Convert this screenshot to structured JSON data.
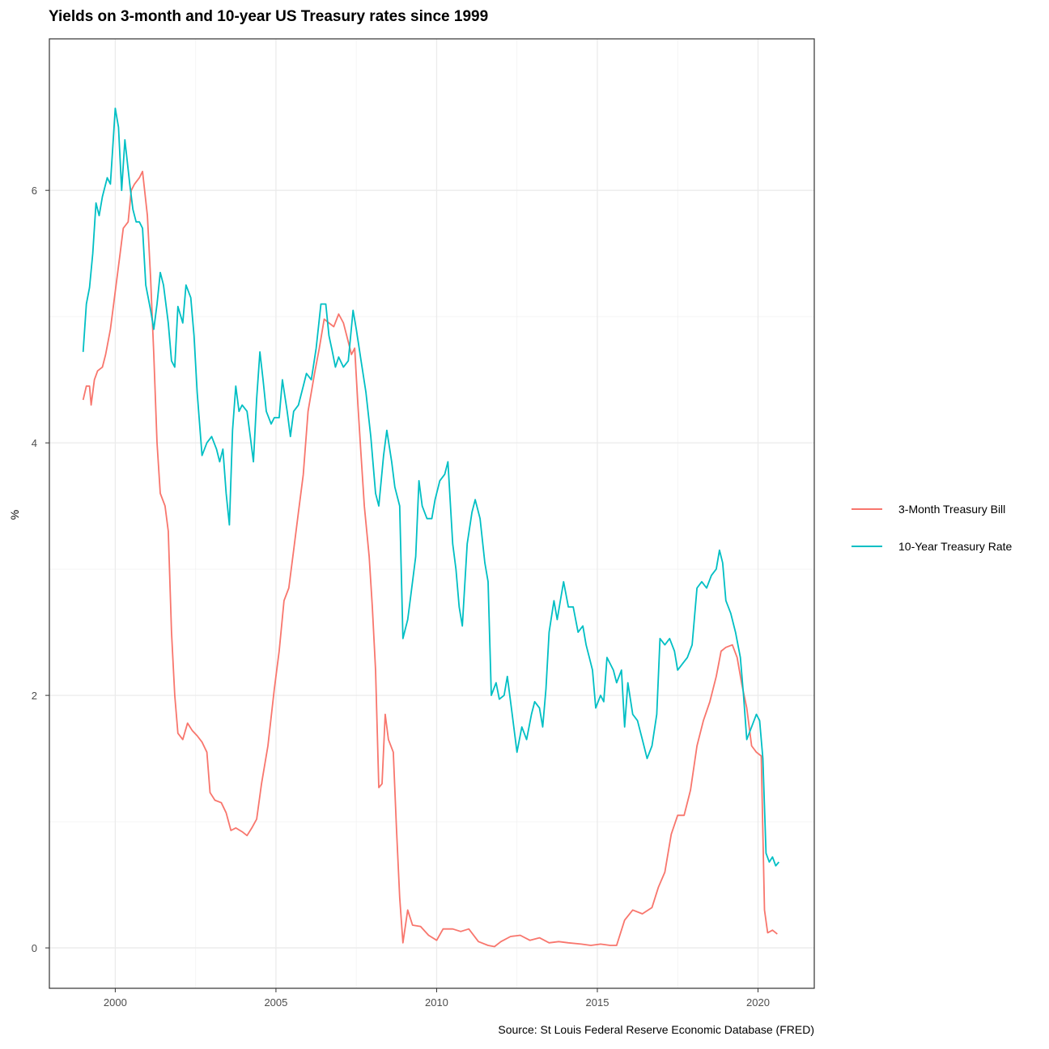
{
  "chart_data": {
    "type": "line",
    "title": "Yields on 3-month and 10-year US Treasury rates since 1999",
    "ylabel": "%",
    "xlabel": "",
    "caption": "Source: St Louis Federal Reserve Economic Database (FRED)",
    "x_ticks": [
      "2000",
      "2005",
      "2010",
      "2015",
      "2020"
    ],
    "y_ticks": [
      "0",
      "2",
      "4",
      "6"
    ],
    "xlim": [
      1997.95,
      2021.75
    ],
    "ylim": [
      -0.32,
      7.2
    ],
    "grid": true,
    "legend_position": "right",
    "series": [
      {
        "name": "3-Month Treasury Bill",
        "color": "#F8766D",
        "points": [
          [
            1999.0,
            4.34
          ],
          [
            1999.1,
            4.45
          ],
          [
            1999.2,
            4.45
          ],
          [
            1999.25,
            4.3
          ],
          [
            1999.35,
            4.5
          ],
          [
            1999.45,
            4.57
          ],
          [
            1999.6,
            4.6
          ],
          [
            1999.7,
            4.7
          ],
          [
            1999.85,
            4.9
          ],
          [
            2000.0,
            5.2
          ],
          [
            2000.15,
            5.5
          ],
          [
            2000.25,
            5.7
          ],
          [
            2000.4,
            5.75
          ],
          [
            2000.5,
            6.0
          ],
          [
            2000.6,
            6.05
          ],
          [
            2000.75,
            6.1
          ],
          [
            2000.85,
            6.15
          ],
          [
            2001.0,
            5.8
          ],
          [
            2001.1,
            5.3
          ],
          [
            2001.2,
            4.7
          ],
          [
            2001.3,
            4.0
          ],
          [
            2001.4,
            3.6
          ],
          [
            2001.55,
            3.5
          ],
          [
            2001.65,
            3.3
          ],
          [
            2001.75,
            2.5
          ],
          [
            2001.85,
            2.0
          ],
          [
            2001.95,
            1.7
          ],
          [
            2002.1,
            1.65
          ],
          [
            2002.25,
            1.78
          ],
          [
            2002.4,
            1.72
          ],
          [
            2002.55,
            1.68
          ],
          [
            2002.7,
            1.63
          ],
          [
            2002.85,
            1.55
          ],
          [
            2002.95,
            1.23
          ],
          [
            2003.1,
            1.17
          ],
          [
            2003.3,
            1.15
          ],
          [
            2003.45,
            1.07
          ],
          [
            2003.6,
            0.93
          ],
          [
            2003.75,
            0.95
          ],
          [
            2003.95,
            0.92
          ],
          [
            2004.1,
            0.89
          ],
          [
            2004.25,
            0.95
          ],
          [
            2004.4,
            1.02
          ],
          [
            2004.55,
            1.3
          ],
          [
            2004.75,
            1.6
          ],
          [
            2004.95,
            2.05
          ],
          [
            2005.1,
            2.35
          ],
          [
            2005.25,
            2.75
          ],
          [
            2005.4,
            2.85
          ],
          [
            2005.55,
            3.15
          ],
          [
            2005.7,
            3.45
          ],
          [
            2005.85,
            3.75
          ],
          [
            2006.0,
            4.25
          ],
          [
            2006.2,
            4.55
          ],
          [
            2006.35,
            4.75
          ],
          [
            2006.5,
            4.98
          ],
          [
            2006.65,
            4.95
          ],
          [
            2006.8,
            4.92
          ],
          [
            2006.95,
            5.02
          ],
          [
            2007.1,
            4.95
          ],
          [
            2007.25,
            4.8
          ],
          [
            2007.35,
            4.7
          ],
          [
            2007.45,
            4.75
          ],
          [
            2007.55,
            4.3
          ],
          [
            2007.65,
            3.9
          ],
          [
            2007.75,
            3.5
          ],
          [
            2007.9,
            3.1
          ],
          [
            2008.0,
            2.7
          ],
          [
            2008.1,
            2.2
          ],
          [
            2008.2,
            1.27
          ],
          [
            2008.3,
            1.3
          ],
          [
            2008.4,
            1.85
          ],
          [
            2008.5,
            1.65
          ],
          [
            2008.65,
            1.55
          ],
          [
            2008.75,
            0.95
          ],
          [
            2008.85,
            0.4
          ],
          [
            2008.95,
            0.04
          ],
          [
            2009.1,
            0.3
          ],
          [
            2009.25,
            0.18
          ],
          [
            2009.5,
            0.17
          ],
          [
            2009.75,
            0.1
          ],
          [
            2010.0,
            0.06
          ],
          [
            2010.2,
            0.15
          ],
          [
            2010.5,
            0.15
          ],
          [
            2010.75,
            0.13
          ],
          [
            2011.0,
            0.15
          ],
          [
            2011.3,
            0.05
          ],
          [
            2011.6,
            0.02
          ],
          [
            2011.8,
            0.01
          ],
          [
            2012.0,
            0.05
          ],
          [
            2012.3,
            0.09
          ],
          [
            2012.6,
            0.1
          ],
          [
            2012.9,
            0.06
          ],
          [
            2013.2,
            0.08
          ],
          [
            2013.5,
            0.04
          ],
          [
            2013.8,
            0.05
          ],
          [
            2014.1,
            0.04
          ],
          [
            2014.5,
            0.03
          ],
          [
            2014.8,
            0.02
          ],
          [
            2015.1,
            0.03
          ],
          [
            2015.4,
            0.02
          ],
          [
            2015.6,
            0.02
          ],
          [
            2015.85,
            0.22
          ],
          [
            2016.1,
            0.3
          ],
          [
            2016.4,
            0.27
          ],
          [
            2016.7,
            0.32
          ],
          [
            2016.9,
            0.48
          ],
          [
            2017.1,
            0.6
          ],
          [
            2017.3,
            0.9
          ],
          [
            2017.5,
            1.05
          ],
          [
            2017.7,
            1.05
          ],
          [
            2017.9,
            1.25
          ],
          [
            2018.1,
            1.6
          ],
          [
            2018.3,
            1.8
          ],
          [
            2018.5,
            1.95
          ],
          [
            2018.7,
            2.15
          ],
          [
            2018.85,
            2.35
          ],
          [
            2019.0,
            2.38
          ],
          [
            2019.2,
            2.4
          ],
          [
            2019.35,
            2.3
          ],
          [
            2019.5,
            2.08
          ],
          [
            2019.65,
            1.9
          ],
          [
            2019.8,
            1.6
          ],
          [
            2019.95,
            1.55
          ],
          [
            2020.1,
            1.52
          ],
          [
            2020.2,
            0.3
          ],
          [
            2020.3,
            0.12
          ],
          [
            2020.45,
            0.14
          ],
          [
            2020.6,
            0.11
          ]
        ]
      },
      {
        "name": "10-Year Treasury Rate",
        "color": "#00BFC4",
        "points": [
          [
            1999.0,
            4.72
          ],
          [
            1999.1,
            5.1
          ],
          [
            1999.2,
            5.23
          ],
          [
            1999.3,
            5.5
          ],
          [
            1999.4,
            5.9
          ],
          [
            1999.5,
            5.8
          ],
          [
            1999.6,
            5.95
          ],
          [
            1999.75,
            6.1
          ],
          [
            1999.85,
            6.05
          ],
          [
            2000.0,
            6.65
          ],
          [
            2000.1,
            6.5
          ],
          [
            2000.2,
            6.0
          ],
          [
            2000.3,
            6.4
          ],
          [
            2000.45,
            6.05
          ],
          [
            2000.55,
            5.85
          ],
          [
            2000.65,
            5.75
          ],
          [
            2000.75,
            5.75
          ],
          [
            2000.85,
            5.7
          ],
          [
            2000.95,
            5.25
          ],
          [
            2001.1,
            5.05
          ],
          [
            2001.2,
            4.9
          ],
          [
            2001.3,
            5.1
          ],
          [
            2001.4,
            5.35
          ],
          [
            2001.5,
            5.25
          ],
          [
            2001.65,
            4.95
          ],
          [
            2001.75,
            4.65
          ],
          [
            2001.85,
            4.6
          ],
          [
            2001.95,
            5.08
          ],
          [
            2002.1,
            4.95
          ],
          [
            2002.2,
            5.25
          ],
          [
            2002.35,
            5.15
          ],
          [
            2002.45,
            4.85
          ],
          [
            2002.55,
            4.4
          ],
          [
            2002.7,
            3.9
          ],
          [
            2002.85,
            4.0
          ],
          [
            2003.0,
            4.05
          ],
          [
            2003.15,
            3.95
          ],
          [
            2003.25,
            3.85
          ],
          [
            2003.35,
            3.95
          ],
          [
            2003.45,
            3.6
          ],
          [
            2003.55,
            3.35
          ],
          [
            2003.65,
            4.1
          ],
          [
            2003.75,
            4.45
          ],
          [
            2003.85,
            4.25
          ],
          [
            2003.95,
            4.3
          ],
          [
            2004.1,
            4.25
          ],
          [
            2004.2,
            4.05
          ],
          [
            2004.3,
            3.85
          ],
          [
            2004.4,
            4.35
          ],
          [
            2004.5,
            4.72
          ],
          [
            2004.6,
            4.5
          ],
          [
            2004.7,
            4.25
          ],
          [
            2004.85,
            4.15
          ],
          [
            2004.95,
            4.2
          ],
          [
            2005.1,
            4.2
          ],
          [
            2005.2,
            4.5
          ],
          [
            2005.35,
            4.25
          ],
          [
            2005.45,
            4.05
          ],
          [
            2005.55,
            4.25
          ],
          [
            2005.7,
            4.3
          ],
          [
            2005.85,
            4.45
          ],
          [
            2005.95,
            4.55
          ],
          [
            2006.1,
            4.5
          ],
          [
            2006.25,
            4.75
          ],
          [
            2006.4,
            5.1
          ],
          [
            2006.55,
            5.1
          ],
          [
            2006.65,
            4.85
          ],
          [
            2006.75,
            4.73
          ],
          [
            2006.85,
            4.6
          ],
          [
            2006.95,
            4.68
          ],
          [
            2007.1,
            4.6
          ],
          [
            2007.25,
            4.65
          ],
          [
            2007.4,
            5.05
          ],
          [
            2007.5,
            4.9
          ],
          [
            2007.65,
            4.65
          ],
          [
            2007.8,
            4.4
          ],
          [
            2007.95,
            4.05
          ],
          [
            2008.1,
            3.6
          ],
          [
            2008.2,
            3.5
          ],
          [
            2008.35,
            3.9
          ],
          [
            2008.45,
            4.1
          ],
          [
            2008.6,
            3.85
          ],
          [
            2008.7,
            3.65
          ],
          [
            2008.85,
            3.5
          ],
          [
            2008.95,
            2.45
          ],
          [
            2009.1,
            2.6
          ],
          [
            2009.2,
            2.8
          ],
          [
            2009.35,
            3.1
          ],
          [
            2009.45,
            3.7
          ],
          [
            2009.55,
            3.5
          ],
          [
            2009.7,
            3.4
          ],
          [
            2009.85,
            3.4
          ],
          [
            2009.95,
            3.55
          ],
          [
            2010.1,
            3.7
          ],
          [
            2010.25,
            3.75
          ],
          [
            2010.35,
            3.85
          ],
          [
            2010.5,
            3.2
          ],
          [
            2010.6,
            3.0
          ],
          [
            2010.7,
            2.7
          ],
          [
            2010.8,
            2.55
          ],
          [
            2010.95,
            3.2
          ],
          [
            2011.1,
            3.45
          ],
          [
            2011.2,
            3.55
          ],
          [
            2011.35,
            3.4
          ],
          [
            2011.5,
            3.05
          ],
          [
            2011.6,
            2.9
          ],
          [
            2011.7,
            2.0
          ],
          [
            2011.85,
            2.1
          ],
          [
            2011.95,
            1.97
          ],
          [
            2012.1,
            2.0
          ],
          [
            2012.2,
            2.15
          ],
          [
            2012.35,
            1.85
          ],
          [
            2012.5,
            1.55
          ],
          [
            2012.65,
            1.75
          ],
          [
            2012.8,
            1.65
          ],
          [
            2012.95,
            1.85
          ],
          [
            2013.05,
            1.95
          ],
          [
            2013.2,
            1.9
          ],
          [
            2013.3,
            1.75
          ],
          [
            2013.4,
            2.05
          ],
          [
            2013.5,
            2.5
          ],
          [
            2013.65,
            2.75
          ],
          [
            2013.75,
            2.6
          ],
          [
            2013.85,
            2.75
          ],
          [
            2013.95,
            2.9
          ],
          [
            2014.1,
            2.7
          ],
          [
            2014.25,
            2.7
          ],
          [
            2014.4,
            2.5
          ],
          [
            2014.55,
            2.55
          ],
          [
            2014.65,
            2.4
          ],
          [
            2014.75,
            2.3
          ],
          [
            2014.85,
            2.2
          ],
          [
            2014.95,
            1.9
          ],
          [
            2015.1,
            2.0
          ],
          [
            2015.2,
            1.95
          ],
          [
            2015.3,
            2.3
          ],
          [
            2015.4,
            2.25
          ],
          [
            2015.5,
            2.2
          ],
          [
            2015.6,
            2.1
          ],
          [
            2015.75,
            2.2
          ],
          [
            2015.85,
            1.75
          ],
          [
            2015.95,
            2.1
          ],
          [
            2016.1,
            1.85
          ],
          [
            2016.25,
            1.8
          ],
          [
            2016.4,
            1.65
          ],
          [
            2016.55,
            1.5
          ],
          [
            2016.7,
            1.6
          ],
          [
            2016.85,
            1.85
          ],
          [
            2016.95,
            2.45
          ],
          [
            2017.1,
            2.4
          ],
          [
            2017.25,
            2.45
          ],
          [
            2017.4,
            2.35
          ],
          [
            2017.5,
            2.2
          ],
          [
            2017.65,
            2.25
          ],
          [
            2017.8,
            2.3
          ],
          [
            2017.95,
            2.4
          ],
          [
            2018.1,
            2.85
          ],
          [
            2018.25,
            2.9
          ],
          [
            2018.4,
            2.85
          ],
          [
            2018.55,
            2.95
          ],
          [
            2018.7,
            3.0
          ],
          [
            2018.8,
            3.15
          ],
          [
            2018.9,
            3.05
          ],
          [
            2019.0,
            2.75
          ],
          [
            2019.15,
            2.65
          ],
          [
            2019.3,
            2.5
          ],
          [
            2019.45,
            2.3
          ],
          [
            2019.55,
            2.0
          ],
          [
            2019.65,
            1.65
          ],
          [
            2019.8,
            1.75
          ],
          [
            2019.95,
            1.85
          ],
          [
            2020.05,
            1.8
          ],
          [
            2020.15,
            1.5
          ],
          [
            2020.25,
            0.75
          ],
          [
            2020.35,
            0.68
          ],
          [
            2020.45,
            0.72
          ],
          [
            2020.55,
            0.65
          ],
          [
            2020.65,
            0.68
          ]
        ]
      }
    ]
  }
}
